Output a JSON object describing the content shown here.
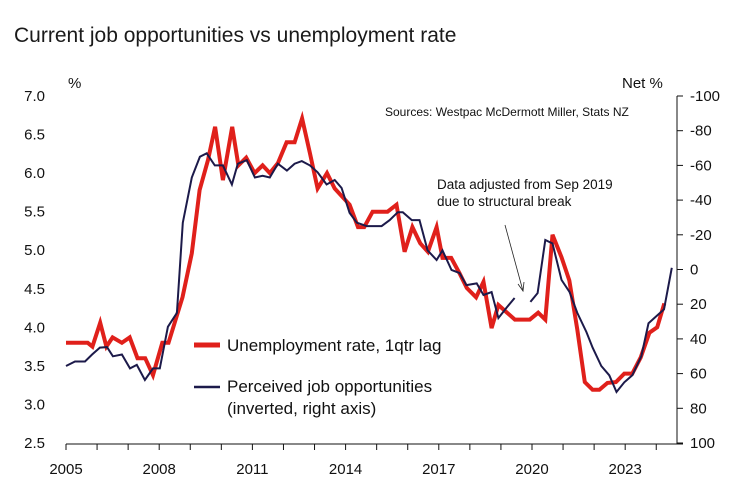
{
  "chart_data": {
    "type": "line",
    "title": "Current job opportunities vs unemployment rate",
    "left_axis": {
      "unit_label": "%",
      "range": [
        2.5,
        7.0
      ],
      "ticks": [
        "7.0",
        "6.5",
        "6.0",
        "5.5",
        "5.0",
        "4.5",
        "4.0",
        "3.5",
        "3.0",
        "2.5"
      ]
    },
    "right_axis": {
      "unit_label": "Net %",
      "range": [
        -100,
        100
      ],
      "inverted": true,
      "ticks": [
        "-100",
        "-80",
        "-60",
        "-40",
        "-20",
        "0",
        "20",
        "40",
        "60",
        "80",
        "100"
      ]
    },
    "x_axis": {
      "range": [
        2005,
        2024.7
      ],
      "tick_labels": [
        "2005",
        "2008",
        "2011",
        "2014",
        "2017",
        "2020",
        "2023"
      ]
    },
    "source": "Sources: Westpac McDermott Miller, Stats NZ",
    "annotation": [
      "Data adjusted from Sep 2019",
      "due to structural break"
    ],
    "grid": false,
    "legend_position": "bottom-left inside",
    "series": [
      {
        "name": "Unemployment rate, 1qtr lag",
        "axis": "left",
        "color": "#e0201b",
        "points": [
          [
            2005.0,
            3.8
          ],
          [
            2005.7,
            3.8
          ],
          [
            2005.85,
            3.75
          ],
          [
            2006.1,
            4.06
          ],
          [
            2006.3,
            3.75
          ],
          [
            2006.5,
            3.87
          ],
          [
            2006.8,
            3.8
          ],
          [
            2007.05,
            3.87
          ],
          [
            2007.3,
            3.6
          ],
          [
            2007.55,
            3.6
          ],
          [
            2007.8,
            3.38
          ],
          [
            2008.1,
            3.8
          ],
          [
            2008.3,
            3.8
          ],
          [
            2008.75,
            4.39
          ],
          [
            2009.05,
            4.96
          ],
          [
            2009.3,
            5.78
          ],
          [
            2009.57,
            6.17
          ],
          [
            2009.8,
            6.6
          ],
          [
            2010.05,
            5.91
          ],
          [
            2010.35,
            6.6
          ],
          [
            2010.55,
            6.1
          ],
          [
            2010.8,
            6.2
          ],
          [
            2011.07,
            6.0
          ],
          [
            2011.33,
            6.1
          ],
          [
            2011.56,
            6.0
          ],
          [
            2011.82,
            6.13
          ],
          [
            2012.1,
            6.4
          ],
          [
            2012.36,
            6.4
          ],
          [
            2012.6,
            6.71
          ],
          [
            2012.85,
            6.26
          ],
          [
            2013.1,
            5.8
          ],
          [
            2013.4,
            6.0
          ],
          [
            2013.65,
            5.8
          ],
          [
            2014.13,
            5.59
          ],
          [
            2014.4,
            5.3
          ],
          [
            2014.6,
            5.3
          ],
          [
            2014.87,
            5.5
          ],
          [
            2015.35,
            5.5
          ],
          [
            2015.64,
            5.59
          ],
          [
            2015.9,
            4.98
          ],
          [
            2016.15,
            5.3
          ],
          [
            2016.4,
            5.09
          ],
          [
            2016.65,
            4.98
          ],
          [
            2016.93,
            5.3
          ],
          [
            2017.12,
            4.9
          ],
          [
            2017.4,
            4.9
          ],
          [
            2017.67,
            4.7
          ],
          [
            2017.9,
            4.51
          ],
          [
            2018.2,
            4.39
          ],
          [
            2018.44,
            4.59
          ],
          [
            2018.7,
            3.99
          ],
          [
            2018.92,
            4.29
          ],
          [
            2019.2,
            4.19
          ],
          [
            2019.45,
            4.1
          ],
          [
            2019.93,
            4.1
          ],
          [
            2020.2,
            4.19
          ],
          [
            2020.43,
            4.1
          ],
          [
            2020.66,
            5.2
          ],
          [
            2020.95,
            4.91
          ],
          [
            2021.2,
            4.61
          ],
          [
            2021.46,
            3.97
          ],
          [
            2021.7,
            3.29
          ],
          [
            2021.95,
            3.19
          ],
          [
            2022.17,
            3.19
          ],
          [
            2022.43,
            3.28
          ],
          [
            2022.7,
            3.29
          ],
          [
            2022.97,
            3.4
          ],
          [
            2023.23,
            3.4
          ],
          [
            2023.5,
            3.61
          ],
          [
            2023.78,
            3.93
          ],
          [
            2024.03,
            4.0
          ],
          [
            2024.26,
            4.31
          ]
        ]
      },
      {
        "name": "Perceived job opportunities (inverted, right axis)",
        "legend_lines": [
          "Perceived job opportunities",
          "(inverted, right axis)"
        ],
        "axis": "right",
        "color": "#1c1a4a",
        "segments": [
          [
            [
              2005.0,
              55.6
            ],
            [
              2005.29,
              53
            ],
            [
              2005.61,
              53
            ],
            [
              2005.84,
              49
            ],
            [
              2006.09,
              45
            ],
            [
              2006.32,
              44.7
            ],
            [
              2006.51,
              50
            ],
            [
              2006.8,
              49
            ],
            [
              2007.06,
              57
            ],
            [
              2007.28,
              55
            ],
            [
              2007.54,
              63.7
            ],
            [
              2007.8,
              57
            ],
            [
              2008.02,
              57
            ],
            [
              2008.28,
              33
            ],
            [
              2008.57,
              25
            ],
            [
              2008.76,
              -27
            ],
            [
              2009.05,
              -53
            ],
            [
              2009.31,
              -65
            ],
            [
              2009.53,
              -67
            ],
            [
              2009.79,
              -60
            ],
            [
              2010.05,
              -60
            ],
            [
              2010.34,
              -49
            ],
            [
              2010.53,
              -61
            ],
            [
              2010.82,
              -63
            ],
            [
              2011.08,
              -53
            ],
            [
              2011.33,
              -54
            ],
            [
              2011.56,
              -53
            ],
            [
              2011.82,
              -61
            ],
            [
              2012.11,
              -57
            ],
            [
              2012.36,
              -61
            ],
            [
              2012.59,
              -62.5
            ],
            [
              2012.85,
              -60
            ],
            [
              2013.1,
              -56
            ],
            [
              2013.39,
              -49
            ],
            [
              2013.65,
              -51.6
            ],
            [
              2013.87,
              -47
            ],
            [
              2014.13,
              -32.6
            ],
            [
              2014.36,
              -27
            ],
            [
              2014.68,
              -25
            ],
            [
              2015.16,
              -25
            ],
            [
              2015.42,
              -28.5
            ],
            [
              2015.68,
              -33
            ],
            [
              2015.84,
              -33
            ],
            [
              2016.13,
              -28.5
            ],
            [
              2016.38,
              -28.5
            ],
            [
              2016.64,
              -11
            ],
            [
              2016.93,
              -5.5
            ],
            [
              2017.12,
              -11
            ],
            [
              2017.41,
              0.3
            ],
            [
              2017.67,
              2
            ],
            [
              2017.89,
              9
            ],
            [
              2018.22,
              8
            ],
            [
              2018.44,
              14.7
            ],
            [
              2018.7,
              13
            ],
            [
              2018.92,
              28
            ],
            [
              2019.18,
              22
            ],
            [
              2019.44,
              16.4
            ]
          ],
          [
            [
              2019.95,
              18.7
            ],
            [
              2020.18,
              13.6
            ],
            [
              2020.43,
              -17
            ],
            [
              2020.66,
              -15
            ],
            [
              2020.95,
              6
            ],
            [
              2021.21,
              13
            ],
            [
              2021.46,
              25
            ],
            [
              2021.75,
              36
            ],
            [
              2021.95,
              45
            ],
            [
              2022.23,
              55.6
            ],
            [
              2022.49,
              61
            ],
            [
              2022.72,
              70.6
            ],
            [
              2022.97,
              65
            ],
            [
              2023.23,
              61
            ],
            [
              2023.52,
              50
            ],
            [
              2023.75,
              31
            ],
            [
              2024.0,
              27
            ],
            [
              2024.25,
              23
            ],
            [
              2024.5,
              -1
            ]
          ]
        ]
      }
    ]
  }
}
